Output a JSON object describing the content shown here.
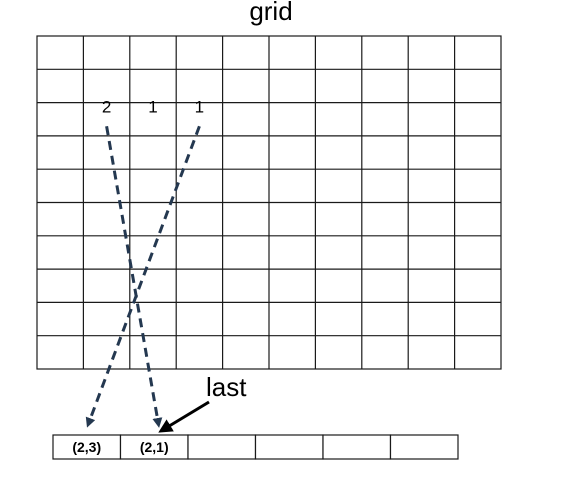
{
  "title": "grid",
  "grid": {
    "rows": 10,
    "cols": 10
  },
  "cell_labels": [
    {
      "row": 2,
      "col": 1,
      "text": "2"
    },
    {
      "row": 2,
      "col": 2,
      "text": "1"
    },
    {
      "row": 2,
      "col": 3,
      "text": "1"
    }
  ],
  "list": {
    "cells": [
      "(2,3)",
      "(2,1)",
      "",
      "",
      "",
      ""
    ]
  },
  "pointer_label": "last",
  "mappings": [
    {
      "from": {
        "row": 2,
        "col": 1
      },
      "to_index": 1
    },
    {
      "from": {
        "row": 2,
        "col": 3
      },
      "to_index": 0
    }
  ],
  "pointer_target_index": 1,
  "colors": {
    "line": "#1a1a1a",
    "dashed_arrow": "#243850",
    "pointer_arrow": "#000000"
  }
}
